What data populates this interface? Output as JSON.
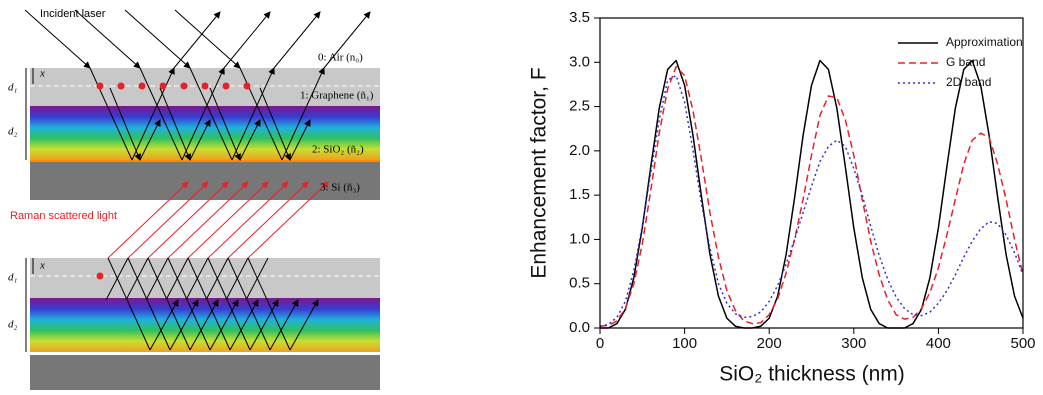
{
  "diagram": {
    "incident_label": "Incident laser",
    "air_label": "0: Air (n₀)",
    "graphene_label": "1: Graphene (ñ₁)",
    "sio2_label": "2: SiO₂ (ñ₂)",
    "si_label": "3: Si (ñ₃)",
    "raman_label": "Raman scattered light",
    "d1": "d₁",
    "d2": "d₂",
    "x": "x"
  },
  "chart_data": {
    "type": "line",
    "xlabel": "SiO₂ thickness (nm)",
    "ylabel": "Enhancement factor, F",
    "x": [
      0,
      10,
      20,
      30,
      40,
      50,
      60,
      70,
      80,
      90,
      100,
      110,
      120,
      130,
      140,
      150,
      160,
      170,
      180,
      190,
      200,
      210,
      220,
      230,
      240,
      250,
      260,
      270,
      280,
      290,
      300,
      310,
      320,
      330,
      340,
      350,
      360,
      370,
      380,
      390,
      400,
      410,
      420,
      430,
      440,
      450,
      460,
      470,
      480,
      490,
      500
    ],
    "series": [
      {
        "name": "Approximation",
        "color": "#000000",
        "dash": "solid",
        "values": [
          0,
          0,
          0.05,
          0.21,
          0.57,
          1.13,
          1.82,
          2.48,
          2.92,
          3.02,
          2.74,
          2.17,
          1.48,
          0.83,
          0.36,
          0.11,
          0.02,
          0,
          0,
          0.02,
          0.11,
          0.36,
          0.83,
          1.47,
          2.17,
          2.74,
          3.02,
          2.92,
          2.48,
          1.82,
          1.13,
          0.57,
          0.21,
          0.05,
          0,
          0,
          0,
          0.05,
          0.21,
          0.57,
          1.13,
          1.82,
          2.48,
          2.92,
          3.02,
          2.74,
          2.17,
          1.48,
          0.83,
          0.36,
          0.11
        ]
      },
      {
        "name": "G band",
        "color": "#e8202a",
        "dash": "dashed",
        "values": [
          0.02,
          0.03,
          0.08,
          0.22,
          0.5,
          0.95,
          1.55,
          2.2,
          2.7,
          2.95,
          2.85,
          2.45,
          1.9,
          1.3,
          0.8,
          0.42,
          0.2,
          0.08,
          0.05,
          0.06,
          0.15,
          0.33,
          0.62,
          1.0,
          1.45,
          1.95,
          2.4,
          2.62,
          2.6,
          2.35,
          1.95,
          1.45,
          0.98,
          0.6,
          0.32,
          0.15,
          0.1,
          0.12,
          0.22,
          0.4,
          0.68,
          1.05,
          1.45,
          1.85,
          2.12,
          2.2,
          2.15,
          1.85,
          1.45,
          1.0,
          0.6
        ]
      },
      {
        "name": "2D band",
        "color": "#3030d0",
        "dash": "dotted",
        "values": [
          0.02,
          0.04,
          0.12,
          0.3,
          0.65,
          1.15,
          1.75,
          2.35,
          2.8,
          2.85,
          2.55,
          2.0,
          1.4,
          0.9,
          0.5,
          0.28,
          0.16,
          0.12,
          0.13,
          0.18,
          0.3,
          0.48,
          0.72,
          1.0,
          1.3,
          1.6,
          1.88,
          2.05,
          2.12,
          2.05,
          1.8,
          1.5,
          1.15,
          0.82,
          0.55,
          0.35,
          0.22,
          0.15,
          0.14,
          0.18,
          0.28,
          0.42,
          0.6,
          0.8,
          0.98,
          1.12,
          1.2,
          1.18,
          1.05,
          0.85,
          0.6
        ]
      }
    ],
    "xlim": [
      0,
      500
    ],
    "xticks": [
      0,
      100,
      200,
      300,
      400,
      500
    ],
    "ylim": [
      0,
      3.5
    ],
    "yticks": [
      {
        "value": 0,
        "label": "0.0"
      },
      0.5,
      {
        "value": 1,
        "label": "1.0"
      },
      1.5,
      {
        "value": 2,
        "label": "2.0"
      },
      2.5,
      {
        "value": 3,
        "label": "3.0"
      },
      3.5
    ],
    "grid": false,
    "legend": "upper right"
  }
}
